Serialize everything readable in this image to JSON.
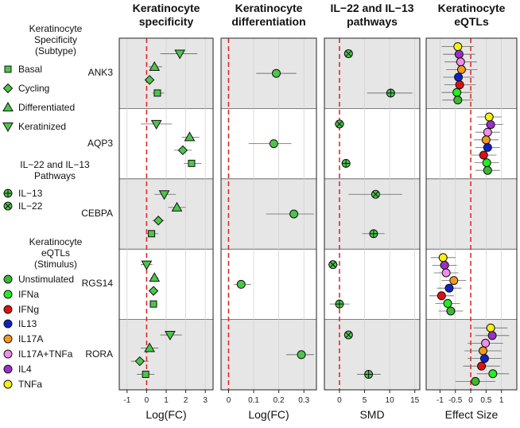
{
  "genes": [
    "ANK3",
    "AQP3",
    "CEBPA",
    "RGS14",
    "RORA"
  ],
  "legend": {
    "specificity": {
      "title_lines": [
        "Keratinocyte",
        "Specificity",
        "(Subtype)"
      ],
      "items": [
        {
          "label": "Basal",
          "shape": "square"
        },
        {
          "label": "Cycling",
          "shape": "diamond"
        },
        {
          "label": "Differentiated",
          "shape": "triangle-up"
        },
        {
          "label": "Keratinized",
          "shape": "triangle-down"
        }
      ]
    },
    "pathways": {
      "title_lines": [
        "IL−22 and IL−13",
        "Pathways"
      ],
      "items": [
        {
          "label": "IL−13",
          "shape": "circle-plus"
        },
        {
          "label": "IL−22",
          "shape": "circle-x"
        }
      ]
    },
    "eqtl": {
      "title_lines": [
        "Keratinocyte",
        "eQTLs",
        "(Stimulus)"
      ],
      "items": [
        {
          "label": "Unstimulated",
          "color": "#3cb832"
        },
        {
          "label": "IFNa",
          "color": "#22ee22"
        },
        {
          "label": "IFNg",
          "color": "#e01010"
        },
        {
          "label": "IL13",
          "color": "#1020c8"
        },
        {
          "label": "IL17A",
          "color": "#f39a1c"
        },
        {
          "label": "IL17A+TNFa",
          "color": "#f08ee8"
        },
        {
          "label": "IL4",
          "color": "#9a30c8"
        },
        {
          "label": "TNFa",
          "color": "#f8f010"
        }
      ]
    }
  },
  "colors": {
    "marker_green": "#4cc64a",
    "shade": "#e6e6e6",
    "zero_line": "#e02020",
    "error_bar": "#666666"
  },
  "chart_data": [
    {
      "type": "scatter",
      "title": "Keratinocyte specificity",
      "xlabel": "Log(FC)",
      "xlim": [
        -1.4,
        3.4
      ],
      "xticks": [
        -1,
        0,
        1,
        2,
        3
      ],
      "xtick_labels": [
        "-1",
        "0",
        "1",
        "2",
        "3"
      ],
      "zero_line": 0,
      "points": [
        {
          "gene": "ANK3",
          "series": "Keratinized",
          "x": 1.7,
          "lo": 0.7,
          "hi": 2.6
        },
        {
          "gene": "ANK3",
          "series": "Differentiated",
          "x": 0.4,
          "lo": 0.1,
          "hi": 0.8
        },
        {
          "gene": "ANK3",
          "series": "Cycling",
          "x": 0.15,
          "lo": -0.1,
          "hi": 0.4
        },
        {
          "gene": "ANK3",
          "series": "Basal",
          "x": 0.55,
          "lo": 0.3,
          "hi": 0.9
        },
        {
          "gene": "AQP3",
          "series": "Keratinized",
          "x": 0.5,
          "lo": -0.3,
          "hi": 1.3
        },
        {
          "gene": "AQP3",
          "series": "Differentiated",
          "x": 2.2,
          "lo": 1.8,
          "hi": 2.7
        },
        {
          "gene": "AQP3",
          "series": "Cycling",
          "x": 1.85,
          "lo": 1.4,
          "hi": 2.3
        },
        {
          "gene": "AQP3",
          "series": "Basal",
          "x": 2.3,
          "lo": 1.9,
          "hi": 2.8
        },
        {
          "gene": "CEBPA",
          "series": "Keratinized",
          "x": 0.9,
          "lo": 0.4,
          "hi": 1.5
        },
        {
          "gene": "CEBPA",
          "series": "Differentiated",
          "x": 1.55,
          "lo": 1.1,
          "hi": 2.0
        },
        {
          "gene": "CEBPA",
          "series": "Cycling",
          "x": 0.6,
          "lo": 0.3,
          "hi": 0.9
        },
        {
          "gene": "CEBPA",
          "series": "Basal",
          "x": 0.25,
          "lo": -0.05,
          "hi": 0.6
        },
        {
          "gene": "RGS14",
          "series": "Keratinized",
          "x": 0.0,
          "lo": -0.3,
          "hi": 0.3
        },
        {
          "gene": "RGS14",
          "series": "Differentiated",
          "x": 0.4,
          "lo": 0.2,
          "hi": 0.6
        },
        {
          "gene": "RGS14",
          "series": "Cycling",
          "x": 0.35,
          "lo": 0.15,
          "hi": 0.55
        },
        {
          "gene": "RGS14",
          "series": "Basal",
          "x": 0.35,
          "lo": 0.15,
          "hi": 0.55
        },
        {
          "gene": "RORA",
          "series": "Keratinized",
          "x": 1.2,
          "lo": 0.7,
          "hi": 1.8
        },
        {
          "gene": "RORA",
          "series": "Differentiated",
          "x": 0.15,
          "lo": -0.3,
          "hi": 0.6
        },
        {
          "gene": "RORA",
          "series": "Cycling",
          "x": -0.35,
          "lo": -0.8,
          "hi": 0.1
        },
        {
          "gene": "RORA",
          "series": "Basal",
          "x": -0.05,
          "lo": -0.5,
          "hi": 0.4
        }
      ]
    },
    {
      "type": "scatter",
      "title": "Keratinocyte differentiation",
      "xlabel": "Log(FC)",
      "xlim": [
        -0.03,
        0.35
      ],
      "xticks": [
        0,
        0.1,
        0.2,
        0.3
      ],
      "xtick_labels": [
        "0",
        "0.1",
        "0.2",
        "0.3"
      ],
      "zero_line": 0,
      "points": [
        {
          "gene": "ANK3",
          "series": "Unstimulated",
          "x": 0.19,
          "lo": 0.11,
          "hi": 0.27
        },
        {
          "gene": "AQP3",
          "series": "Unstimulated",
          "x": 0.18,
          "lo": 0.08,
          "hi": 0.25
        },
        {
          "gene": "CEBPA",
          "series": "Unstimulated",
          "x": 0.26,
          "lo": 0.15,
          "hi": 0.34
        },
        {
          "gene": "RGS14",
          "series": "Unstimulated",
          "x": 0.05,
          "lo": 0.02,
          "hi": 0.09
        },
        {
          "gene": "RORA",
          "series": "Unstimulated",
          "x": 0.29,
          "lo": 0.23,
          "hi": 0.34
        }
      ]
    },
    {
      "type": "scatter",
      "title": "IL−22 and IL−13 pathways",
      "xlabel": "SMD",
      "xlim": [
        -3,
        16
      ],
      "xticks": [
        0,
        5,
        10,
        15
      ],
      "xtick_labels": [
        "0",
        "5",
        "10",
        "15"
      ],
      "zero_line": 0,
      "points": [
        {
          "gene": "ANK3",
          "series": "IL−22",
          "x": 1.8,
          "lo": 1.0,
          "hi": 2.6
        },
        {
          "gene": "ANK3",
          "series": "IL−13",
          "x": 10.2,
          "lo": 5.5,
          "hi": 14.5
        },
        {
          "gene": "AQP3",
          "series": "IL−22",
          "x": 0.0,
          "lo": -1.0,
          "hi": 1.0
        },
        {
          "gene": "AQP3",
          "series": "IL−13",
          "x": 1.3,
          "lo": 0.5,
          "hi": 2.1
        },
        {
          "gene": "CEBPA",
          "series": "IL−22",
          "x": 7.2,
          "lo": 1.8,
          "hi": 12.5
        },
        {
          "gene": "CEBPA",
          "series": "IL−13",
          "x": 6.8,
          "lo": 4.5,
          "hi": 9.0
        },
        {
          "gene": "RGS14",
          "series": "IL−22",
          "x": -1.3,
          "lo": -2.3,
          "hi": -0.3
        },
        {
          "gene": "RGS14",
          "series": "IL−13",
          "x": 0.0,
          "lo": -2.0,
          "hi": 2.0
        },
        {
          "gene": "RORA",
          "series": "IL−22",
          "x": 1.8,
          "lo": 1.0,
          "hi": 2.6
        },
        {
          "gene": "RORA",
          "series": "IL−13",
          "x": 5.8,
          "lo": 3.5,
          "hi": 8.2
        }
      ]
    },
    {
      "type": "scatter",
      "title": "Keratinocyte eQTLs",
      "xlabel": "Effect Size",
      "xlim": [
        -1.45,
        1.5
      ],
      "xticks": [
        -1,
        -0.5,
        0,
        0.5,
        1
      ],
      "xtick_labels": [
        "-1",
        "-0.5",
        "0",
        "0.5",
        "1"
      ],
      "zero_line": 0,
      "points": [
        {
          "gene": "ANK3",
          "series": "TNFa",
          "x": -0.42,
          "lo": -0.95,
          "hi": 0.1
        },
        {
          "gene": "ANK3",
          "series": "IL4",
          "x": -0.38,
          "lo": -0.9,
          "hi": 0.14
        },
        {
          "gene": "ANK3",
          "series": "IL17A+TNFa",
          "x": -0.33,
          "lo": -0.85,
          "hi": 0.2
        },
        {
          "gene": "ANK3",
          "series": "IL17A",
          "x": -0.3,
          "lo": -0.8,
          "hi": 0.22
        },
        {
          "gene": "ANK3",
          "series": "IL13",
          "x": -0.4,
          "lo": -0.9,
          "hi": 0.12
        },
        {
          "gene": "ANK3",
          "series": "IFNg",
          "x": -0.36,
          "lo": -0.86,
          "hi": 0.16
        },
        {
          "gene": "ANK3",
          "series": "IFNa",
          "x": -0.45,
          "lo": -0.95,
          "hi": 0.05
        },
        {
          "gene": "ANK3",
          "series": "Unstimulated",
          "x": -0.42,
          "lo": -0.92,
          "hi": 0.08
        },
        {
          "gene": "AQP3",
          "series": "TNFa",
          "x": 0.6,
          "lo": 0.2,
          "hi": 1.0
        },
        {
          "gene": "AQP3",
          "series": "IL4",
          "x": 0.65,
          "lo": 0.25,
          "hi": 1.05
        },
        {
          "gene": "AQP3",
          "series": "IL17A+TNFa",
          "x": 0.55,
          "lo": 0.15,
          "hi": 0.95
        },
        {
          "gene": "AQP3",
          "series": "IL17A",
          "x": 0.5,
          "lo": 0.1,
          "hi": 0.9
        },
        {
          "gene": "AQP3",
          "series": "IL13",
          "x": 0.55,
          "lo": 0.15,
          "hi": 0.95
        },
        {
          "gene": "AQP3",
          "series": "IFNg",
          "x": 0.42,
          "lo": 0.0,
          "hi": 0.84
        },
        {
          "gene": "AQP3",
          "series": "IFNa",
          "x": 0.52,
          "lo": 0.12,
          "hi": 0.92
        },
        {
          "gene": "AQP3",
          "series": "Unstimulated",
          "x": 0.55,
          "lo": 0.15,
          "hi": 0.95
        },
        {
          "gene": "RGS14",
          "series": "TNFa",
          "x": -0.9,
          "lo": -1.3,
          "hi": -0.5
        },
        {
          "gene": "RGS14",
          "series": "IL4",
          "x": -0.85,
          "lo": -1.25,
          "hi": -0.45
        },
        {
          "gene": "RGS14",
          "series": "IL17A+TNFa",
          "x": -0.8,
          "lo": -1.2,
          "hi": -0.4
        },
        {
          "gene": "RGS14",
          "series": "IL17A",
          "x": -0.55,
          "lo": -0.95,
          "hi": -0.15
        },
        {
          "gene": "RGS14",
          "series": "IL13",
          "x": -0.7,
          "lo": -1.1,
          "hi": -0.3
        },
        {
          "gene": "RGS14",
          "series": "IFNg",
          "x": -0.95,
          "lo": -1.35,
          "hi": -0.55
        },
        {
          "gene": "RGS14",
          "series": "IFNa",
          "x": -0.75,
          "lo": -1.15,
          "hi": -0.35
        },
        {
          "gene": "RGS14",
          "series": "Unstimulated",
          "x": -0.65,
          "lo": -1.05,
          "hi": -0.25
        },
        {
          "gene": "RORA",
          "series": "TNFa",
          "x": 0.65,
          "lo": 0.1,
          "hi": 1.2
        },
        {
          "gene": "RORA",
          "series": "IL4",
          "x": 0.7,
          "lo": 0.15,
          "hi": 1.25
        },
        {
          "gene": "RORA",
          "series": "IL17A+TNFa",
          "x": 0.48,
          "lo": -0.1,
          "hi": 1.05
        },
        {
          "gene": "RORA",
          "series": "IL17A",
          "x": 0.4,
          "lo": -0.2,
          "hi": 1.0
        },
        {
          "gene": "RORA",
          "series": "IL13",
          "x": 0.45,
          "lo": -0.1,
          "hi": 1.0
        },
        {
          "gene": "RORA",
          "series": "IFNg",
          "x": 0.35,
          "lo": -0.25,
          "hi": 0.95
        },
        {
          "gene": "RORA",
          "series": "IFNa",
          "x": 0.72,
          "lo": 0.2,
          "hi": 1.25
        },
        {
          "gene": "RORA",
          "series": "Unstimulated",
          "x": 0.15,
          "lo": -0.5,
          "hi": 0.8
        }
      ]
    }
  ]
}
